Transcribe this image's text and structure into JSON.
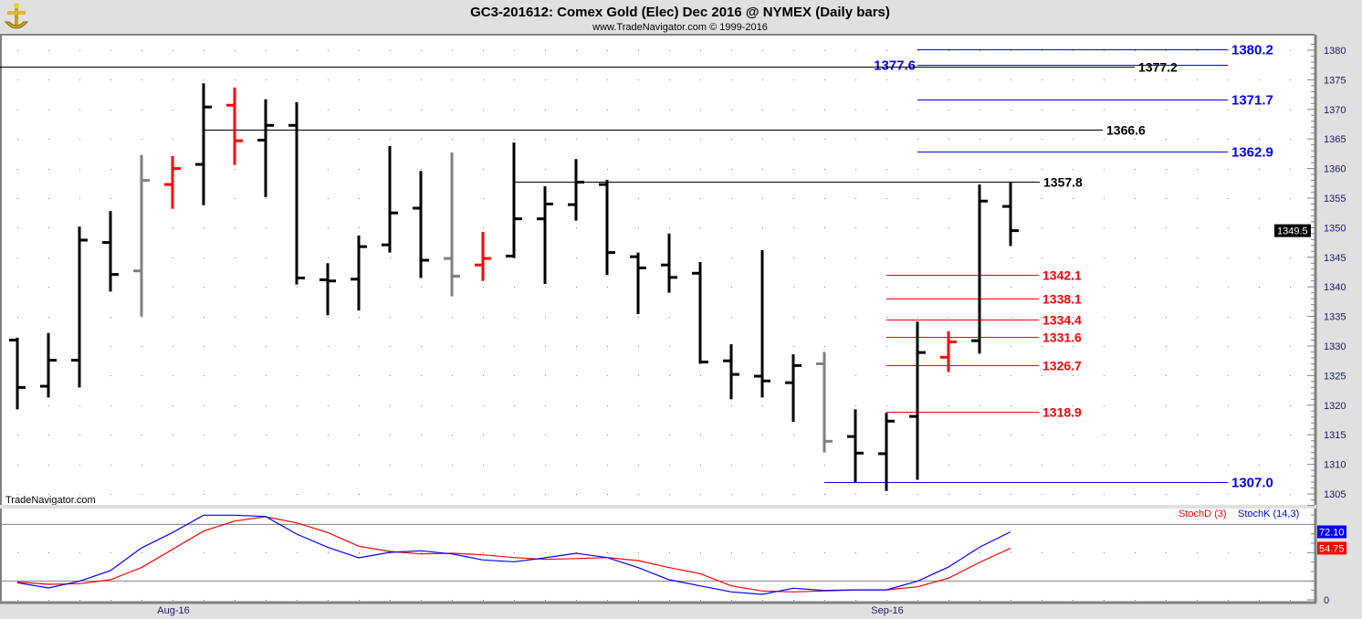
{
  "header": {
    "title": "GC3-201612:  Comex Gold (Elec) Dec 2016 @ NYMEX  (Daily bars)",
    "subtitle": "www.TradeNavigator.com © 1999-2016",
    "logo_icon": "gold-anchor-logo-icon"
  },
  "watermark": "TradeNavigator.com",
  "colors": {
    "up": "#000000",
    "down": "#ff0000",
    "neutral": "#808080",
    "blue": "#0000ff",
    "axis_text": "#1a1a6e"
  },
  "chart_data": [
    {
      "type": "ohlc",
      "title": "GC3-201612:  Comex Gold (Elec) Dec 2016 @ NYMEX  (Daily bars)",
      "ylim": [
        1304,
        1382
      ],
      "yticks": [
        1305,
        1310,
        1315,
        1320,
        1325,
        1330,
        1335,
        1340,
        1345,
        1350,
        1355,
        1360,
        1365,
        1370,
        1375,
        1380
      ],
      "ytick_format": 1,
      "grid": "dotted",
      "last_price": "1349.5",
      "xtick_labels": [
        {
          "label": "Aug-16",
          "bar_index": 5
        },
        {
          "label": "Sep-16",
          "bar_index": 28
        }
      ],
      "bars": [
        {
          "o": 1331.0,
          "h": 1331.4,
          "l": 1319.3,
          "c": 1323.0,
          "color": "black"
        },
        {
          "o": 1323.2,
          "h": 1332.2,
          "l": 1321.3,
          "c": 1327.6,
          "color": "black"
        },
        {
          "o": 1327.6,
          "h": 1350.2,
          "l": 1323.0,
          "c": 1347.9,
          "color": "black"
        },
        {
          "o": 1347.5,
          "h": 1352.8,
          "l": 1339.2,
          "c": 1342.1,
          "color": "black"
        },
        {
          "o": 1342.7,
          "h": 1362.3,
          "l": 1335.0,
          "c": 1358.0,
          "color": "gray"
        },
        {
          "o": 1357.3,
          "h": 1362.1,
          "l": 1353.2,
          "c": 1360.0,
          "color": "red"
        },
        {
          "o": 1360.7,
          "h": 1374.4,
          "l": 1353.8,
          "c": 1370.4,
          "color": "black"
        },
        {
          "o": 1370.7,
          "h": 1373.7,
          "l": 1360.6,
          "c": 1364.7,
          "color": "red"
        },
        {
          "o": 1364.8,
          "h": 1371.7,
          "l": 1355.2,
          "c": 1367.3,
          "color": "black"
        },
        {
          "o": 1367.3,
          "h": 1371.2,
          "l": 1340.4,
          "c": 1341.5,
          "color": "black"
        },
        {
          "o": 1341.2,
          "h": 1344.0,
          "l": 1335.2,
          "c": 1341.0,
          "color": "black"
        },
        {
          "o": 1341.3,
          "h": 1348.7,
          "l": 1336.0,
          "c": 1346.8,
          "color": "black"
        },
        {
          "o": 1347.1,
          "h": 1363.8,
          "l": 1345.8,
          "c": 1352.5,
          "color": "black"
        },
        {
          "o": 1353.3,
          "h": 1359.6,
          "l": 1341.5,
          "c": 1344.5,
          "color": "black"
        },
        {
          "o": 1344.8,
          "h": 1362.7,
          "l": 1338.4,
          "c": 1341.8,
          "color": "gray"
        },
        {
          "o": 1343.7,
          "h": 1349.3,
          "l": 1341.0,
          "c": 1344.8,
          "color": "red"
        },
        {
          "o": 1345.2,
          "h": 1364.4,
          "l": 1344.9,
          "c": 1351.5,
          "color": "black"
        },
        {
          "o": 1351.5,
          "h": 1357.0,
          "l": 1340.5,
          "c": 1354.0,
          "color": "black"
        },
        {
          "o": 1353.9,
          "h": 1361.6,
          "l": 1351.2,
          "c": 1357.7,
          "color": "black"
        },
        {
          "o": 1357.3,
          "h": 1358.1,
          "l": 1342.0,
          "c": 1345.8,
          "color": "black"
        },
        {
          "o": 1345.1,
          "h": 1345.8,
          "l": 1335.4,
          "c": 1343.2,
          "color": "black"
        },
        {
          "o": 1343.7,
          "h": 1349.0,
          "l": 1339.0,
          "c": 1341.6,
          "color": "black"
        },
        {
          "o": 1342.3,
          "h": 1344.2,
          "l": 1327.0,
          "c": 1327.3,
          "color": "black"
        },
        {
          "o": 1327.5,
          "h": 1330.3,
          "l": 1321.0,
          "c": 1325.2,
          "color": "black"
        },
        {
          "o": 1324.9,
          "h": 1346.2,
          "l": 1321.3,
          "c": 1324.1,
          "color": "black"
        },
        {
          "o": 1323.8,
          "h": 1328.6,
          "l": 1317.2,
          "c": 1326.7,
          "color": "black"
        },
        {
          "o": 1327.0,
          "h": 1329.0,
          "l": 1312.0,
          "c": 1313.9,
          "color": "gray"
        },
        {
          "o": 1314.7,
          "h": 1319.3,
          "l": 1307.0,
          "c": 1311.9,
          "color": "black"
        },
        {
          "o": 1311.8,
          "h": 1318.7,
          "l": 1305.5,
          "c": 1317.3,
          "color": "black"
        },
        {
          "o": 1318.1,
          "h": 1334.1,
          "l": 1307.4,
          "c": 1328.9,
          "color": "black"
        },
        {
          "o": 1328.1,
          "h": 1332.5,
          "l": 1325.6,
          "c": 1330.7,
          "color": "red"
        },
        {
          "o": 1330.9,
          "h": 1357.3,
          "l": 1328.7,
          "c": 1354.5,
          "color": "black"
        },
        {
          "o": 1353.6,
          "h": 1357.8,
          "l": 1346.9,
          "c": 1349.5,
          "color": "black"
        }
      ],
      "levels": [
        {
          "value": 1380.2,
          "label": "1380.2",
          "color": "blue",
          "from_bar": 29,
          "to_end": true,
          "label_side": "right"
        },
        {
          "value": 1377.6,
          "label": "1377.6",
          "color": "blue",
          "from_bar": 29,
          "to_end": true,
          "label_side": "left"
        },
        {
          "value": 1377.2,
          "label": "1377.2",
          "color": "black",
          "from_bar": -1,
          "to_end": false,
          "label_side": "right"
        },
        {
          "value": 1371.7,
          "label": "1371.7",
          "color": "blue",
          "from_bar": 29,
          "to_end": true,
          "label_side": "right"
        },
        {
          "value": 1366.6,
          "label": "1366.6",
          "color": "black",
          "from_bar": 6,
          "to_end": false,
          "label_side": "right"
        },
        {
          "value": 1362.9,
          "label": "1362.9",
          "color": "blue",
          "from_bar": 29,
          "to_end": true,
          "label_side": "right"
        },
        {
          "value": 1357.8,
          "label": "1357.8",
          "color": "black",
          "from_bar": 16,
          "to_end": false,
          "label_side": "right"
        },
        {
          "value": 1342.1,
          "label": "1342.1",
          "color": "red",
          "from_bar": 28,
          "to_end": false,
          "label_side": "right"
        },
        {
          "value": 1338.1,
          "label": "1338.1",
          "color": "red",
          "from_bar": 28,
          "to_end": false,
          "label_side": "right"
        },
        {
          "value": 1334.4,
          "label": "1334.4",
          "color": "red",
          "from_bar": 28,
          "to_end": false,
          "label_side": "right"
        },
        {
          "value": 1331.6,
          "label": "1331.6",
          "color": "red",
          "from_bar": 28,
          "to_end": false,
          "label_side": "right"
        },
        {
          "value": 1326.7,
          "label": "1326.7",
          "color": "red",
          "from_bar": 28,
          "to_end": false,
          "label_side": "right"
        },
        {
          "value": 1318.9,
          "label": "1318.9",
          "color": "red",
          "from_bar": 28,
          "to_end": false,
          "label_side": "right"
        },
        {
          "value": 1307.0,
          "label": "1307.0",
          "color": "blue",
          "from_bar": 26,
          "to_end": true,
          "label_side": "right"
        }
      ]
    },
    {
      "type": "line",
      "ylim": [
        0,
        100
      ],
      "yticks": [
        {
          "value": 0,
          "label": "0"
        }
      ],
      "reference_lines": [
        20,
        80
      ],
      "legend_placement": "top-right",
      "series": [
        {
          "name": "StochD (3)",
          "color": "#ff0000",
          "last_label": "54.75",
          "values": [
            19,
            16.5,
            17.1,
            21.3,
            34.2,
            53.5,
            72.9,
            83.5,
            88.1,
            81.6,
            71.3,
            56.8,
            51.3,
            48.7,
            49.4,
            47.7,
            44.8,
            42.9,
            43.8,
            44.8,
            41.6,
            34.2,
            27.8,
            14.8,
            9.4,
            8.4,
            9.4,
            10.6,
            10.6,
            13.8,
            22.9,
            39.7,
            54.75
          ]
        },
        {
          "name": "StochK (14,3)",
          "color": "#0000ff",
          "last_label": "72.10",
          "values": [
            18.1,
            12.6,
            19.7,
            31,
            55,
            71.3,
            89.7,
            89.7,
            88.4,
            69.7,
            55.8,
            44.5,
            50.3,
            52,
            48.7,
            42.3,
            40.4,
            44.5,
            49.4,
            44.8,
            34.2,
            21.3,
            14.8,
            8.4,
            5.8,
            12.3,
            10,
            10.6,
            10.6,
            19.7,
            34.8,
            55.8,
            72.1
          ]
        }
      ]
    }
  ]
}
